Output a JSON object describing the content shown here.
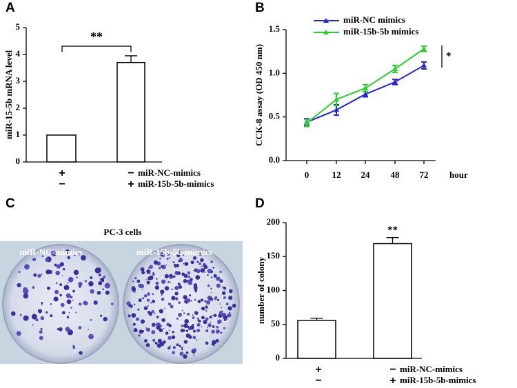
{
  "chart_data": [
    {
      "type": "bar",
      "panel": "A",
      "ylabel": "miR-15-5b mRNA level",
      "values": [
        1,
        3.7
      ],
      "errors": [
        0,
        0.25
      ],
      "color": "#ffffff",
      "ylim": [
        0,
        5
      ],
      "yticks": [
        0,
        1,
        2,
        3,
        4,
        5
      ],
      "significance": "**",
      "conditions": [
        {
          "name": "miR-NC-mimics",
          "signs": [
            "+",
            "−"
          ]
        },
        {
          "name": "miR-15b-5b-mimics",
          "signs": [
            "−",
            "+"
          ]
        }
      ]
    },
    {
      "type": "line",
      "panel": "B",
      "ylabel": "CCK-8 assay (OD 450 nm)",
      "xlabel": "hour",
      "categories": [
        "0",
        "12",
        "24",
        "48",
        "72"
      ],
      "ylim": [
        0,
        1.5
      ],
      "yticks": [
        {
          "value": 0,
          "label": "0.0"
        },
        {
          "value": 0.5,
          "label": "0.5"
        },
        {
          "value": 1,
          "label": "1.0"
        },
        {
          "value": 1.5,
          "label": "1.5"
        }
      ],
      "significance": "*",
      "series": [
        {
          "name": "miR-NC mimics",
          "color": "#2323e0",
          "values": [
            0.44,
            0.58,
            0.76,
            0.9,
            1.09
          ],
          "errors": [
            0.04,
            0.06,
            0.03,
            0.03,
            0.04
          ]
        },
        {
          "name": "miR-15b-5b mimics",
          "color": "#2bcf2b",
          "values": [
            0.43,
            0.7,
            0.83,
            1.05,
            1.28
          ],
          "errors": [
            0.04,
            0.07,
            0.04,
            0.04,
            0.03
          ]
        }
      ]
    },
    {
      "type": "image",
      "panel": "C",
      "title": "PC-3 cells",
      "labels": [
        "miR-NC-mimics",
        "miR-15b-5b-mimics"
      ]
    },
    {
      "type": "bar",
      "panel": "D",
      "ylabel": "number of colony",
      "values": [
        56,
        169
      ],
      "errors": [
        3,
        9
      ],
      "color": "#ffffff",
      "ylim": [
        0,
        200
      ],
      "yticks": [
        0,
        50,
        100,
        150,
        200
      ],
      "significance": "**",
      "conditions": [
        {
          "name": "miR-NC-mimics",
          "signs": [
            "+",
            "−"
          ]
        },
        {
          "name": "miR-15b-5b-mimics",
          "signs": [
            "−",
            "+"
          ]
        }
      ]
    }
  ]
}
